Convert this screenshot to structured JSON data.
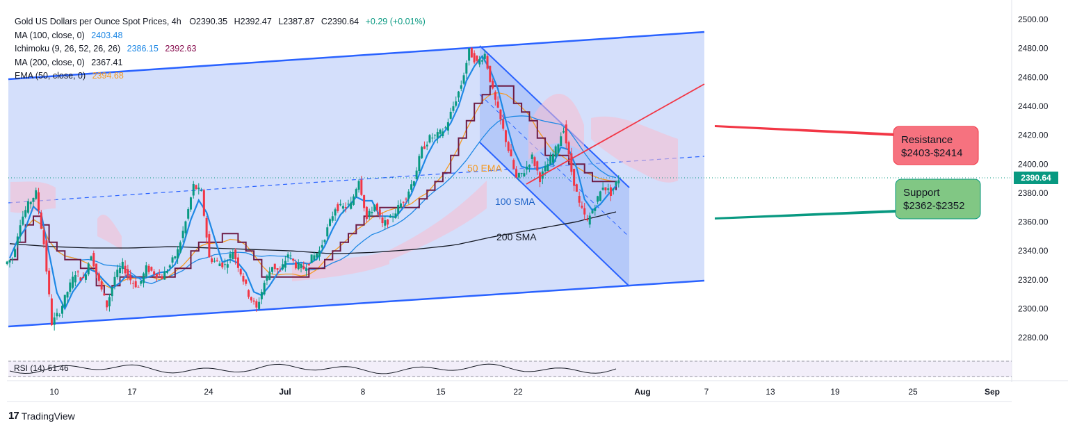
{
  "legend": {
    "symbol": "Gold US Dollars per Ounce Spot Prices, 4h",
    "open": "O2390.35",
    "high": "H2392.47",
    "low": "L2387.87",
    "close": "C2390.64",
    "change": "+0.29 (+0.01%)",
    "ma100_label": "MA (100, close, 0)",
    "ma100_value": "2403.48",
    "ichimoku_label": "Ichimoku (9, 26, 52, 26, 26)",
    "ichimoku_value1": "2386.15",
    "ichimoku_value2": "2392.63",
    "ma200_label": "MA (200, close, 0)",
    "ma200_value": "2367.41",
    "ema50_label": "EMA (50, close, 0)",
    "ema50_value": "2394.68"
  },
  "rsi": {
    "label": "RSI (14)",
    "value": "51.46"
  },
  "current_price": "2390.64",
  "annotations": {
    "ema_label": "50 EMA",
    "sma100_label": "100 SMA",
    "sma200_label": "200 SMA",
    "resistance_title": "Resistance",
    "resistance_range": "$2403-$2414",
    "support_title": "Support",
    "support_range": "$2362-$2352"
  },
  "branding": {
    "logo_text": "TradingView"
  },
  "colors": {
    "up": "#089981",
    "down": "#f23645",
    "channel_fill": "#cfdcfb",
    "channel_line": "#2962ff",
    "ma100": "#1e88e5",
    "ema50": "#f59a23",
    "ma200": "#131722",
    "kijun": "#6d1b45",
    "tenkan": "#1e88e5",
    "cloud": "#f8bbd0",
    "resistance_box": "#f6727f",
    "support_box": "#81c784"
  },
  "chart_data": {
    "type": "candlestick",
    "title": "Gold US Dollars per Ounce Spot Prices, 4h",
    "y_ticks": [
      2500,
      2480,
      2460,
      2440,
      2420,
      2400,
      2380,
      2360,
      2340,
      2320,
      2300,
      2280
    ],
    "ylim": [
      2270,
      2505
    ],
    "x_ticks": [
      "10",
      "17",
      "24",
      "Jul",
      "8",
      "15",
      "22",
      "Aug",
      "7",
      "13",
      "19",
      "25",
      "Sep"
    ],
    "grid": false,
    "close_path": [
      2335,
      2360,
      2372,
      2380,
      2345,
      2290,
      2298,
      2312,
      2325,
      2320,
      2338,
      2318,
      2302,
      2322,
      2330,
      2320,
      2315,
      2328,
      2325,
      2322,
      2330,
      2340,
      2360,
      2385,
      2380,
      2335,
      2332,
      2330,
      2340,
      2325,
      2310,
      2300,
      2318,
      2330,
      2325,
      2338,
      2330,
      2328,
      2335,
      2340,
      2355,
      2370,
      2370,
      2372,
      2390,
      2362,
      2372,
      2358,
      2362,
      2370,
      2378,
      2390,
      2410,
      2418,
      2420,
      2425,
      2440,
      2455,
      2478,
      2470,
      2476,
      2450,
      2430,
      2410,
      2390,
      2395,
      2405,
      2390,
      2400,
      2410,
      2425,
      2395,
      2372,
      2360,
      2372,
      2385,
      2380,
      2390
    ]
  }
}
